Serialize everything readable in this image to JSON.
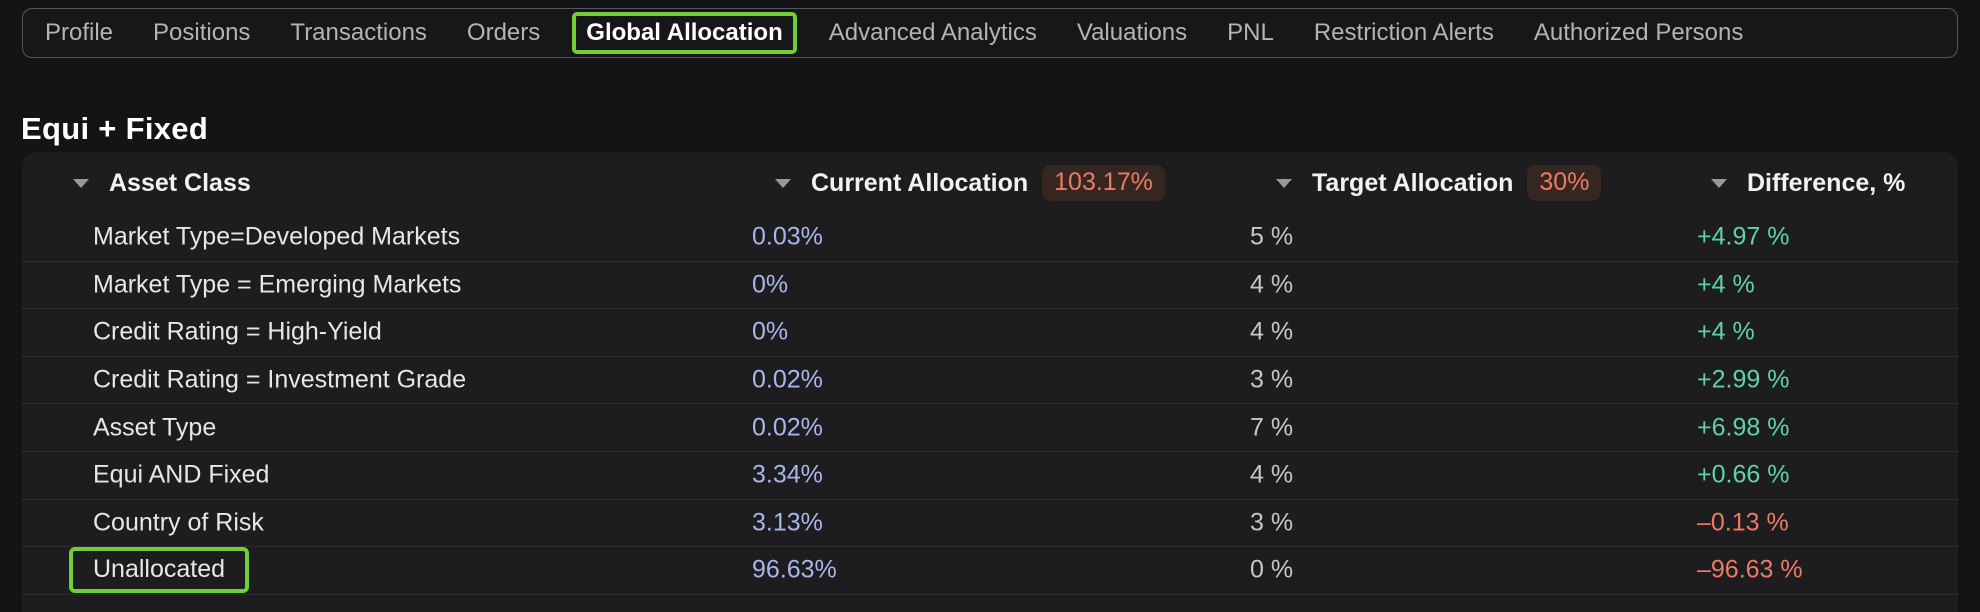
{
  "nav": {
    "tabs": [
      {
        "label": "Profile",
        "active": false
      },
      {
        "label": "Positions",
        "active": false
      },
      {
        "label": "Transactions",
        "active": false
      },
      {
        "label": "Orders",
        "active": false
      },
      {
        "label": "Global Allocation",
        "active": true
      },
      {
        "label": "Advanced Analytics",
        "active": false
      },
      {
        "label": "Valuations",
        "active": false
      },
      {
        "label": "PNL",
        "active": false
      },
      {
        "label": "Restriction Alerts",
        "active": false
      },
      {
        "label": "Authorized Persons",
        "active": false
      }
    ]
  },
  "page": {
    "title": "Equi + Fixed"
  },
  "table": {
    "columns": [
      {
        "label": "Asset Class"
      },
      {
        "label": "Current Allocation",
        "badge": "103.17%"
      },
      {
        "label": "Target Allocation",
        "badge": "30%"
      },
      {
        "label": "Difference, %"
      }
    ],
    "rows": [
      {
        "asset_class": "Market Type=Developed Markets",
        "current": "0.03%",
        "target": "5 %",
        "difference": "+4.97 %",
        "direction": "positive",
        "highlighted": false
      },
      {
        "asset_class": "Market Type = Emerging Markets",
        "current": "0%",
        "target": "4 %",
        "difference": "+4 %",
        "direction": "positive",
        "highlighted": false
      },
      {
        "asset_class": "Credit Rating = High-Yield",
        "current": "0%",
        "target": "4 %",
        "difference": "+4 %",
        "direction": "positive",
        "highlighted": false
      },
      {
        "asset_class": "Credit Rating = Investment Grade",
        "current": "0.02%",
        "target": "3 %",
        "difference": "+2.99 %",
        "direction": "positive",
        "highlighted": false
      },
      {
        "asset_class": "Asset Type",
        "current": "0.02%",
        "target": "7 %",
        "difference": "+6.98 %",
        "direction": "positive",
        "highlighted": false
      },
      {
        "asset_class": "Equi AND Fixed",
        "current": "3.34%",
        "target": "4 %",
        "difference": "+0.66 %",
        "direction": "positive",
        "highlighted": false
      },
      {
        "asset_class": "Country of Risk",
        "current": "3.13%",
        "target": "3 %",
        "difference": "–0.13 %",
        "direction": "negative",
        "highlighted": false
      },
      {
        "asset_class": "Unallocated",
        "current": "96.63%",
        "target": "0 %",
        "difference": "–96.63 %",
        "direction": "negative",
        "highlighted": true
      }
    ]
  },
  "icons": {
    "column_sort": "dropdown-triangle"
  },
  "colors": {
    "positive_difference": "#5ed3a8",
    "negative_difference": "#ed7a64",
    "current_allocation_value": "#a8b6ea",
    "over_allocation_badge_text": "#ed7a64",
    "over_allocation_badge_bg": "#362622",
    "highlight_border": "#71ce37",
    "table_bg": "#1d1d20",
    "page_bg": "#141416"
  }
}
